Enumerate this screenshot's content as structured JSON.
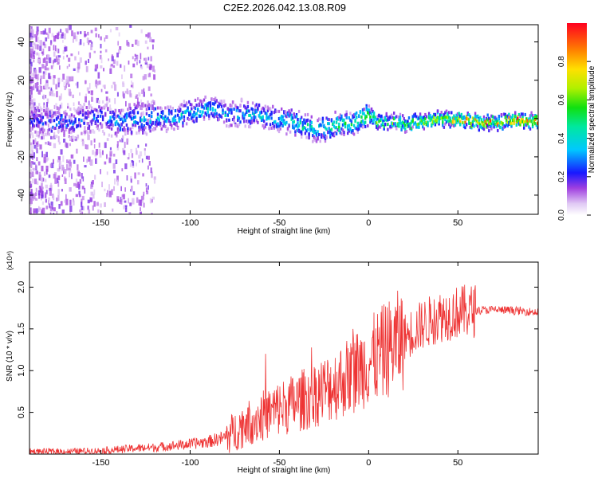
{
  "title": "C2E2.2026.042.13.08.R09",
  "colors": {
    "snr_line": "#ee3333",
    "frame": "#000000"
  },
  "chart_data": [
    {
      "type": "heatmap",
      "xlabel": "Height of straight line (km)",
      "ylabel": "Frequency (Hz)",
      "xlim": [
        -190,
        95
      ],
      "ylim": [
        -50,
        49
      ],
      "xticks": [
        -150,
        -100,
        -50,
        0,
        50
      ],
      "yticks": [
        -40,
        -20,
        0,
        20,
        40
      ],
      "xtick_labels": [
        "-150",
        "-100",
        "-50",
        "0",
        "50"
      ],
      "ytick_labels": [
        "-40",
        "-20",
        "0",
        "20",
        "40"
      ],
      "colorbar": {
        "label": "Normalized spectral amplitude",
        "range": [
          0,
          1
        ],
        "ticks": [
          0.0,
          0.2,
          0.4,
          0.6,
          0.8
        ],
        "tick_labels": [
          "0.0",
          "0.2",
          "0.4",
          "0.6",
          "0.8"
        ]
      },
      "ridge": {
        "description": "dominant frequency track",
        "x": [
          -190,
          -175,
          -160,
          -150,
          -140,
          -130,
          -120,
          -110,
          -100,
          -95,
          -90,
          -80,
          -70,
          -60,
          -50,
          -40,
          -30,
          -25,
          -20,
          -15,
          -10,
          -5,
          0,
          5,
          10,
          15,
          20,
          30,
          40,
          50,
          60,
          70,
          80,
          95
        ],
        "freq": [
          -1,
          -2,
          -1,
          1,
          -2,
          0,
          0,
          1,
          3,
          4,
          5,
          2,
          3,
          1,
          0,
          -3,
          -6,
          -5,
          -4,
          -2,
          -3,
          0,
          1,
          -1,
          -2,
          -1,
          -3,
          -1,
          0,
          -1,
          -2,
          -2,
          -1,
          -1
        ],
        "amplitude": [
          0.25,
          0.3,
          0.3,
          0.3,
          0.35,
          0.4,
          0.4,
          0.45,
          0.45,
          0.45,
          0.45,
          0.45,
          0.45,
          0.45,
          0.45,
          0.5,
          0.5,
          0.5,
          0.55,
          0.6,
          0.6,
          0.65,
          0.7,
          0.7,
          0.6,
          0.7,
          0.7,
          0.75,
          0.8,
          0.85,
          0.9,
          0.9,
          0.95,
          0.98
        ]
      }
    },
    {
      "type": "line",
      "xlabel": "Height of straight line (km)",
      "ylabel": "SNR (10 * v/v)",
      "y_multiplier": "(x10⁴)",
      "xlim": [
        -190,
        95
      ],
      "ylim": [
        0,
        2.3
      ],
      "xticks": [
        -150,
        -100,
        -50,
        0,
        50
      ],
      "yticks": [
        0.5,
        1.0,
        1.5,
        2.0
      ],
      "xtick_labels": [
        "-150",
        "-100",
        "-50",
        "0",
        "50"
      ],
      "ytick_labels": [
        "0.5",
        "1.0",
        "1.5",
        "2.0"
      ],
      "series": [
        {
          "name": "SNR",
          "x": [
            -190,
            -170,
            -150,
            -130,
            -120,
            -110,
            -100,
            -90,
            -80,
            -70,
            -60,
            -50,
            -40,
            -30,
            -20,
            -10,
            0,
            10,
            20,
            30,
            40,
            50,
            60,
            70,
            80,
            95
          ],
          "y": [
            0.03,
            0.03,
            0.04,
            0.07,
            0.08,
            0.1,
            0.12,
            0.15,
            0.2,
            0.35,
            0.45,
            0.55,
            0.62,
            0.72,
            0.82,
            0.95,
            1.1,
            1.25,
            1.4,
            1.55,
            1.65,
            1.7,
            1.72,
            1.73,
            1.72,
            1.7
          ]
        }
      ]
    }
  ]
}
